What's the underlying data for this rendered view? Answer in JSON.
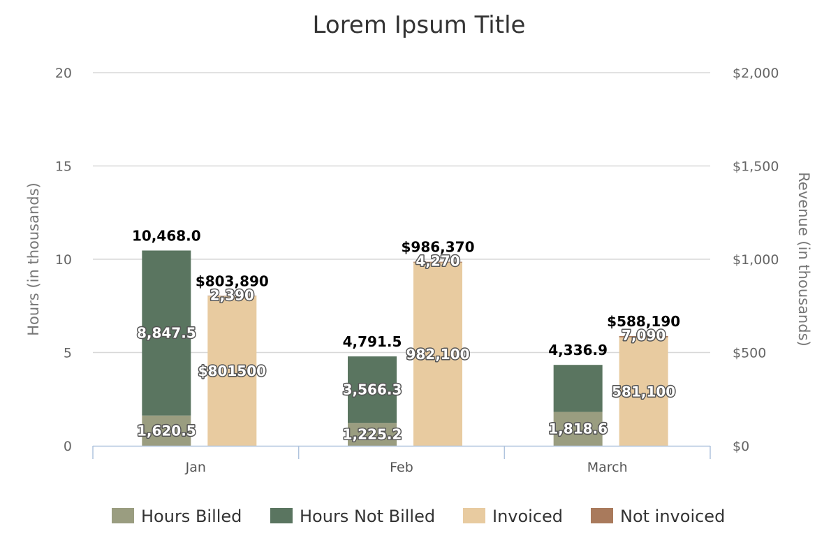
{
  "chart_data": {
    "type": "bar",
    "title": "Lorem Ipsum Title",
    "categories": [
      "Jan",
      "Feb",
      "March"
    ],
    "y_left": {
      "label": "Hours (in thousands)",
      "range": [
        0,
        20
      ],
      "ticks": [
        0,
        5,
        10,
        15,
        20
      ],
      "tick_labels": [
        "0",
        "5",
        "10",
        "15",
        "20"
      ]
    },
    "y_right": {
      "label": "Revenue (in thousands)",
      "range": [
        0,
        2000
      ],
      "ticks": [
        0,
        500,
        1000,
        1500,
        2000
      ],
      "tick_labels": [
        "$0",
        "$500",
        "$1,000",
        "$1,500",
        "$2,000"
      ]
    },
    "grid": true,
    "legend_position": "bottom",
    "series": [
      {
        "name": "Hours Billed",
        "stack": "hours",
        "axis": "left",
        "color": "#9a9d80",
        "values": [
          1.6205,
          1.2252,
          1.8186
        ],
        "labels": [
          "1,620.5",
          "1,225.2",
          "1,818.6"
        ]
      },
      {
        "name": "Hours Not Billed",
        "stack": "hours",
        "axis": "left",
        "color": "#5a7560",
        "values": [
          8.8475,
          3.5663,
          2.5183
        ],
        "labels": [
          "8,847.5",
          "3,566.3",
          ""
        ]
      },
      {
        "name": "Invoiced",
        "stack": "revenue",
        "axis": "right",
        "color": "#e8cba0",
        "values": [
          801.5,
          982.1,
          581.1
        ],
        "labels": [
          "$801500",
          "982,100",
          "581,100"
        ]
      },
      {
        "name": "Not invoiced",
        "stack": "revenue",
        "axis": "right",
        "color": "#a97a5c",
        "values": [
          2.39,
          4.27,
          7.09
        ],
        "labels": [
          "2,390",
          "4,270",
          "7,090"
        ]
      }
    ],
    "totals": {
      "hours": [
        "10,468.0",
        "4,791.5",
        "4,336.9"
      ],
      "revenue": [
        "$803,890",
        "$986,370",
        "$588,190"
      ]
    }
  }
}
